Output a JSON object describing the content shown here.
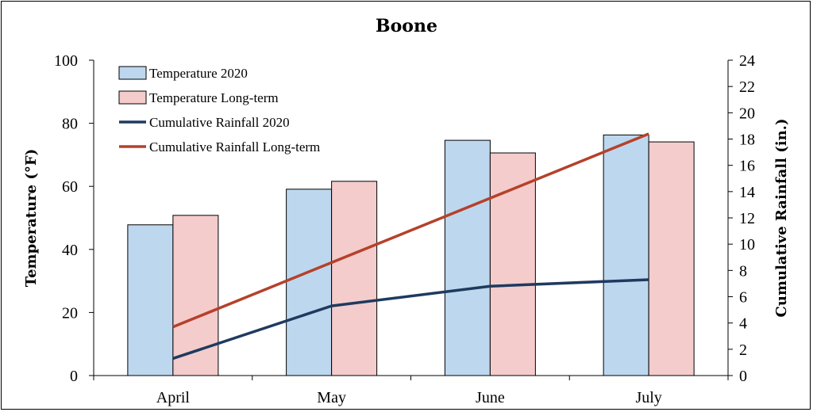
{
  "chart_data": {
    "type": "bar",
    "title": "Boone",
    "categories": [
      "April",
      "May",
      "June",
      "July"
    ],
    "ylabel": "Temperature (°F)",
    "y2label": "Cumulative Rainfall (in.)",
    "ylim": [
      0,
      100
    ],
    "yticks": [
      0,
      20,
      40,
      60,
      80,
      100
    ],
    "y2lim": [
      0,
      24
    ],
    "y2ticks": [
      0,
      2,
      4,
      6,
      8,
      10,
      12,
      14,
      16,
      18,
      20,
      22,
      24
    ],
    "grid": false,
    "legend_position": "top-left",
    "series": [
      {
        "name": "Temperature 2020",
        "kind": "bar",
        "axis": "left",
        "values": [
          47.8,
          59.1,
          74.6,
          76.3
        ],
        "fill": "#bdd7ee",
        "stroke": "#000000"
      },
      {
        "name": "Temperature Long-term",
        "kind": "bar",
        "axis": "left",
        "values": [
          50.8,
          61.6,
          70.6,
          74.1
        ],
        "fill": "#f4cccc",
        "stroke": "#000000"
      },
      {
        "name": "Cumulative Rainfall 2020",
        "kind": "line",
        "axis": "right",
        "values": [
          1.3,
          5.3,
          6.8,
          7.3
        ],
        "color": "#1f3a5f"
      },
      {
        "name": "Cumulative Rainfall Long-term",
        "kind": "line",
        "axis": "right",
        "values": [
          3.7,
          8.6,
          13.5,
          18.4
        ],
        "color": "#b5412a"
      }
    ]
  }
}
